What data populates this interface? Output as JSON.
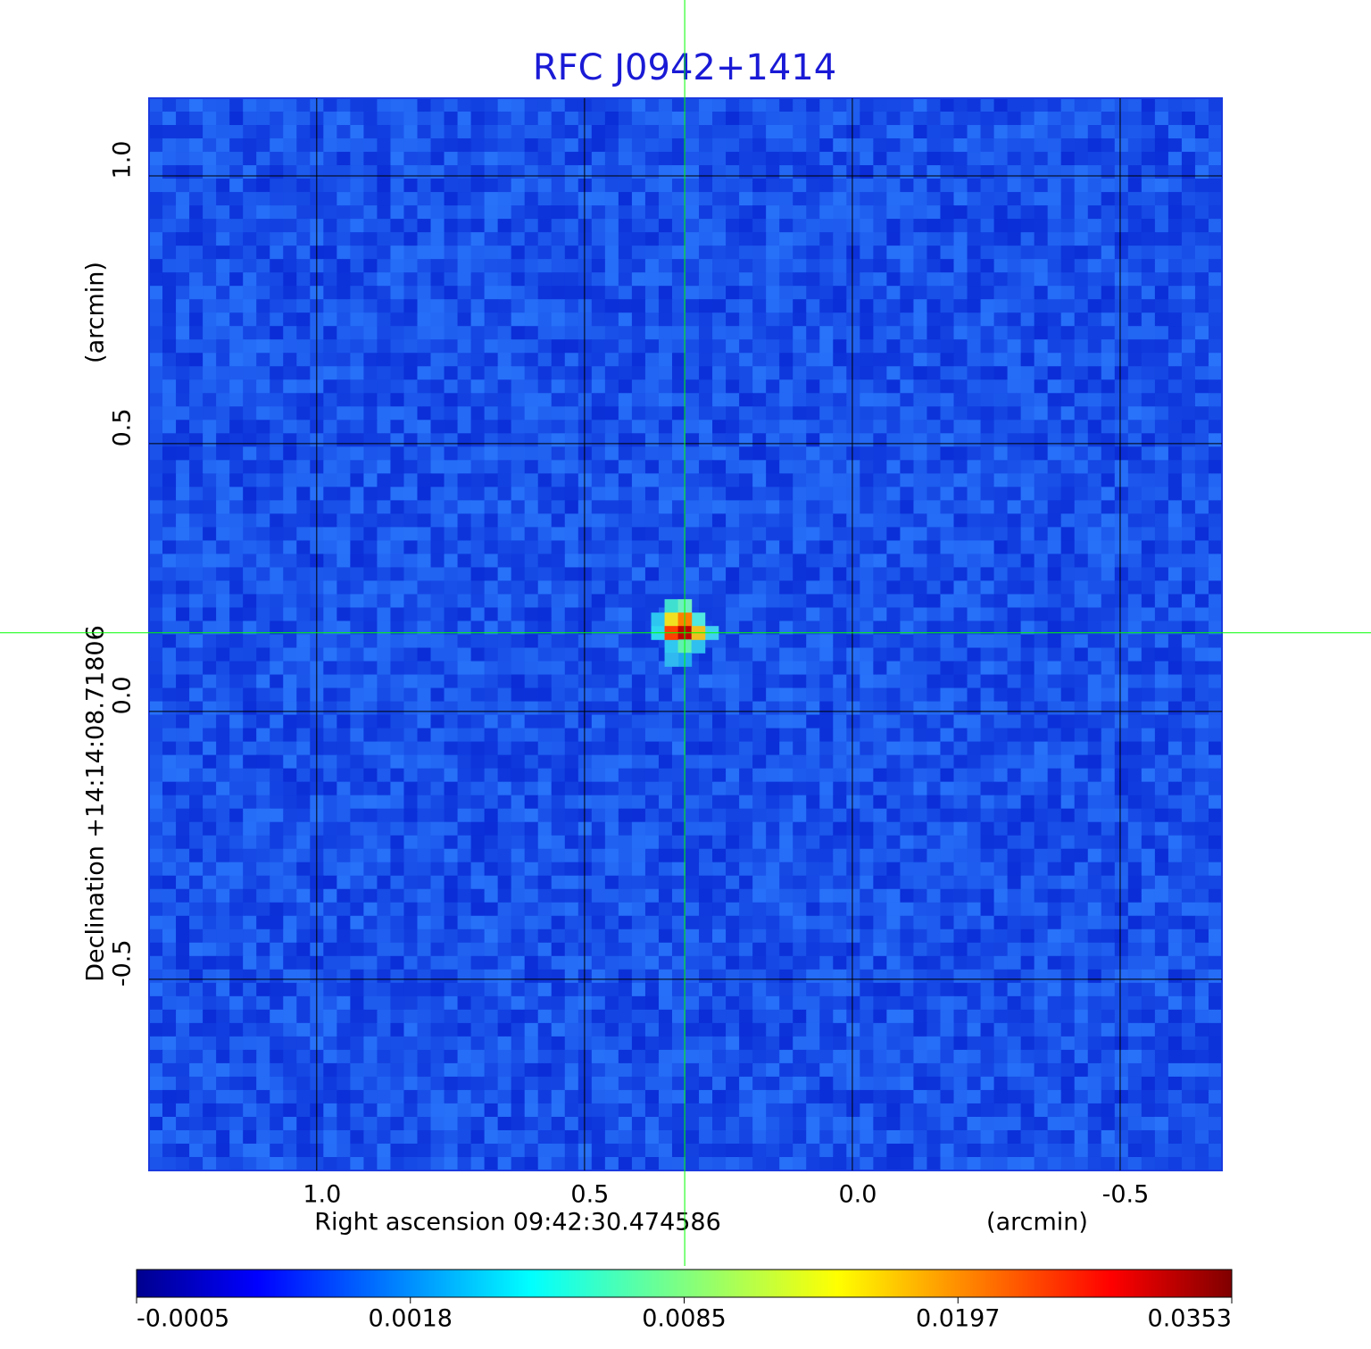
{
  "chart_data": {
    "type": "image",
    "title": "RFC J0942+1414",
    "x_label": "Right ascension  09:42:30.474586",
    "x_unit": "(arcmin)",
    "y_label": "Declination  +14:14:08.71806",
    "y_unit": "(arcmin)",
    "xlim": [
      1.313,
      -0.69
    ],
    "ylim": [
      -0.857,
      1.145
    ],
    "xticks": [
      {
        "value": 1,
        "label": "1.0"
      },
      0.5,
      {
        "value": 0,
        "label": "0.0"
      },
      -0.5
    ],
    "yticks": [
      {
        "value": 1,
        "label": "1.0"
      },
      0.5,
      {
        "value": 0,
        "label": "0.0"
      },
      -0.5
    ],
    "grid": true,
    "crosshair": {
      "x": 0.313,
      "y": 0.147,
      "color": "#00ff00"
    },
    "colorbar": {
      "colormap": "jet",
      "ticks": [
        -0.0005,
        0.0018,
        0.0085,
        0.0197,
        0.0353
      ]
    }
  }
}
